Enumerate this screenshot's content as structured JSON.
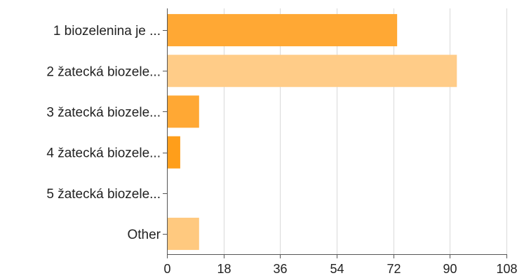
{
  "chart_data": {
    "type": "bar",
    "orientation": "horizontal",
    "categories": [
      "1 biozelenina je ...",
      "2 žatecká biozele...",
      "3 žatecká biozele...",
      "4 žatecká biozele...",
      "5 žatecká biozele...",
      "Other"
    ],
    "values": [
      73,
      92,
      10,
      4,
      0,
      10
    ],
    "xlim": [
      0,
      108
    ],
    "xticks": [
      0,
      18,
      36,
      54,
      72,
      90,
      108
    ],
    "grid": true,
    "legend": "none",
    "colors": [
      "#ffa834",
      "#ffcc88",
      "#ffa834",
      "#ff9e1a",
      "#ffa834",
      "#ffc97f"
    ]
  }
}
